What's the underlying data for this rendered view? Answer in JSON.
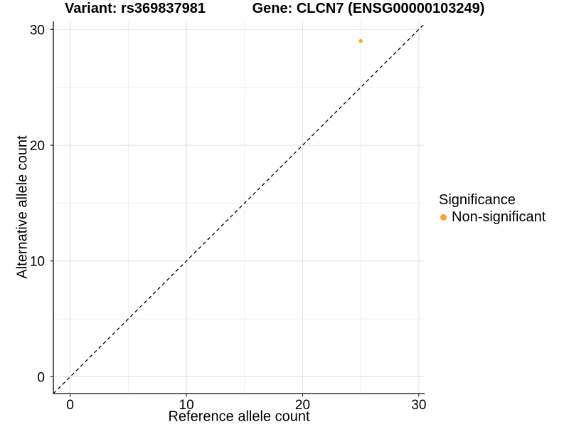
{
  "chart_data": {
    "type": "scatter",
    "title_left": "Variant: rs369837981",
    "title_right": "Gene: CLCN7 (ENSG00000103249)",
    "xlabel": "Reference allele count",
    "ylabel": "Alternative allele count",
    "xlim": [
      -1.45,
      30.5
    ],
    "ylim": [
      -1.45,
      30.7
    ],
    "x_ticks": [
      0,
      10,
      20,
      30
    ],
    "y_ticks": [
      0,
      10,
      20,
      30
    ],
    "x_minor_ticks": [
      5,
      15,
      25
    ],
    "y_minor_ticks": [
      5,
      15,
      25
    ],
    "grid": "major+minor, light gray on white",
    "identity_line": {
      "style": "dashed",
      "slope": 1,
      "intercept": 0,
      "color": "#000000"
    },
    "series": [
      {
        "name": "Non-significant",
        "color": "#F9A12B",
        "points": [
          {
            "x": 25,
            "y": 29
          }
        ]
      }
    ],
    "legend": {
      "title": "Significance",
      "position": "right",
      "entries": [
        {
          "label": "Non-significant",
          "color": "#F9A12B"
        }
      ]
    }
  }
}
